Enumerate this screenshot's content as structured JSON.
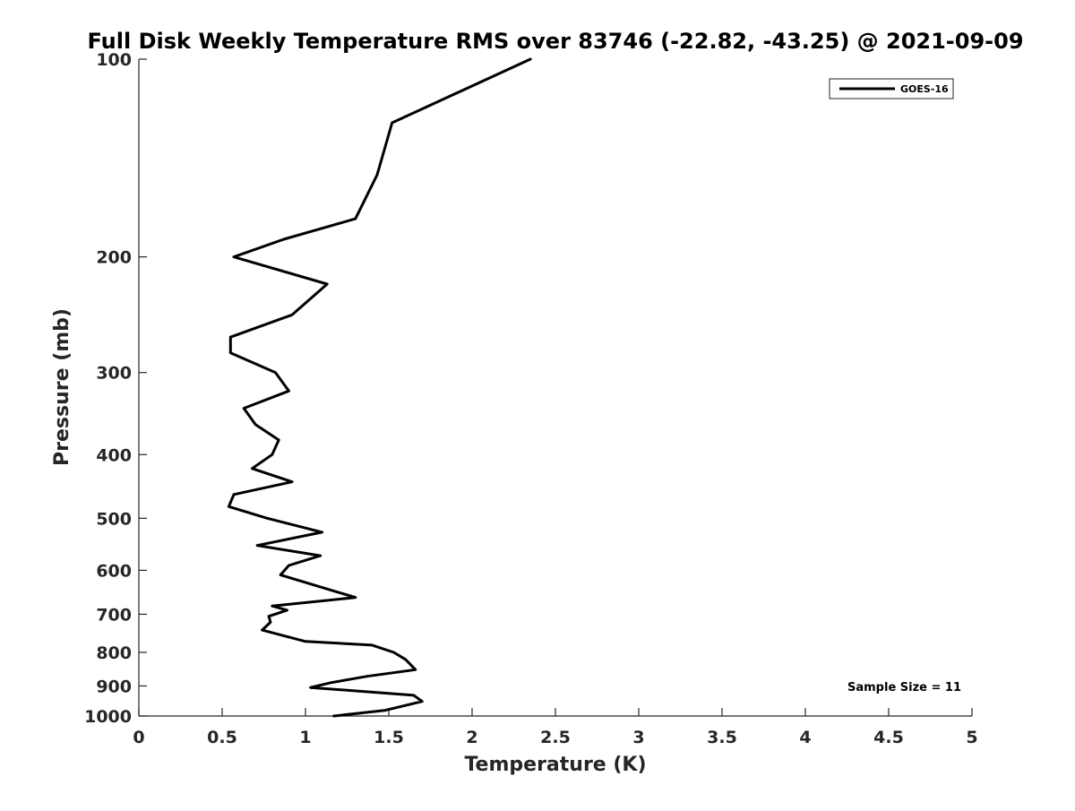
{
  "chart_data": {
    "type": "line",
    "title": "Full Disk Weekly Temperature RMS over 83746 (-22.82, -43.25) @ 2021-09-09",
    "xlabel": "Temperature (K)",
    "ylabel": "Pressure (mb)",
    "xlim": [
      0,
      5
    ],
    "ylim": [
      1000,
      100
    ],
    "y_scale": "log",
    "y_reversed": true,
    "x_ticks": [
      "0",
      "0.5",
      "1",
      "1.5",
      "2",
      "2.5",
      "3",
      "3.5",
      "4",
      "4.5",
      "5"
    ],
    "y_ticks": [
      "100",
      "200",
      "300",
      "400",
      "500",
      "600",
      "700",
      "800",
      "900",
      "1000"
    ],
    "grid": false,
    "legend": {
      "position": "top-right",
      "entries": [
        "GOES-16"
      ]
    },
    "annotation": "Sample Size = 11",
    "series": [
      {
        "name": "GOES-16",
        "color": "#000000",
        "points": [
          [
            2.35,
            100
          ],
          [
            1.52,
            125
          ],
          [
            1.43,
            150
          ],
          [
            1.3,
            175
          ],
          [
            0.87,
            188
          ],
          [
            0.57,
            200
          ],
          [
            1.13,
            220
          ],
          [
            0.92,
            245
          ],
          [
            0.55,
            265
          ],
          [
            0.55,
            280
          ],
          [
            0.82,
            300
          ],
          [
            0.9,
            320
          ],
          [
            0.63,
            340
          ],
          [
            0.7,
            360
          ],
          [
            0.84,
            380
          ],
          [
            0.8,
            400
          ],
          [
            0.68,
            420
          ],
          [
            0.92,
            440
          ],
          [
            0.57,
            460
          ],
          [
            0.54,
            480
          ],
          [
            0.77,
            500
          ],
          [
            1.1,
            525
          ],
          [
            0.71,
            550
          ],
          [
            1.09,
            570
          ],
          [
            0.9,
            590
          ],
          [
            0.85,
            610
          ],
          [
            1.3,
            660
          ],
          [
            0.8,
            680
          ],
          [
            0.89,
            690
          ],
          [
            0.78,
            705
          ],
          [
            0.79,
            720
          ],
          [
            0.74,
            740
          ],
          [
            1.0,
            770
          ],
          [
            1.4,
            780
          ],
          [
            1.53,
            800
          ],
          [
            1.6,
            820
          ],
          [
            1.66,
            850
          ],
          [
            1.37,
            870
          ],
          [
            1.15,
            890
          ],
          [
            1.03,
            905
          ],
          [
            1.65,
            930
          ],
          [
            1.7,
            950
          ],
          [
            1.48,
            980
          ],
          [
            1.17,
            1000
          ]
        ]
      }
    ]
  }
}
